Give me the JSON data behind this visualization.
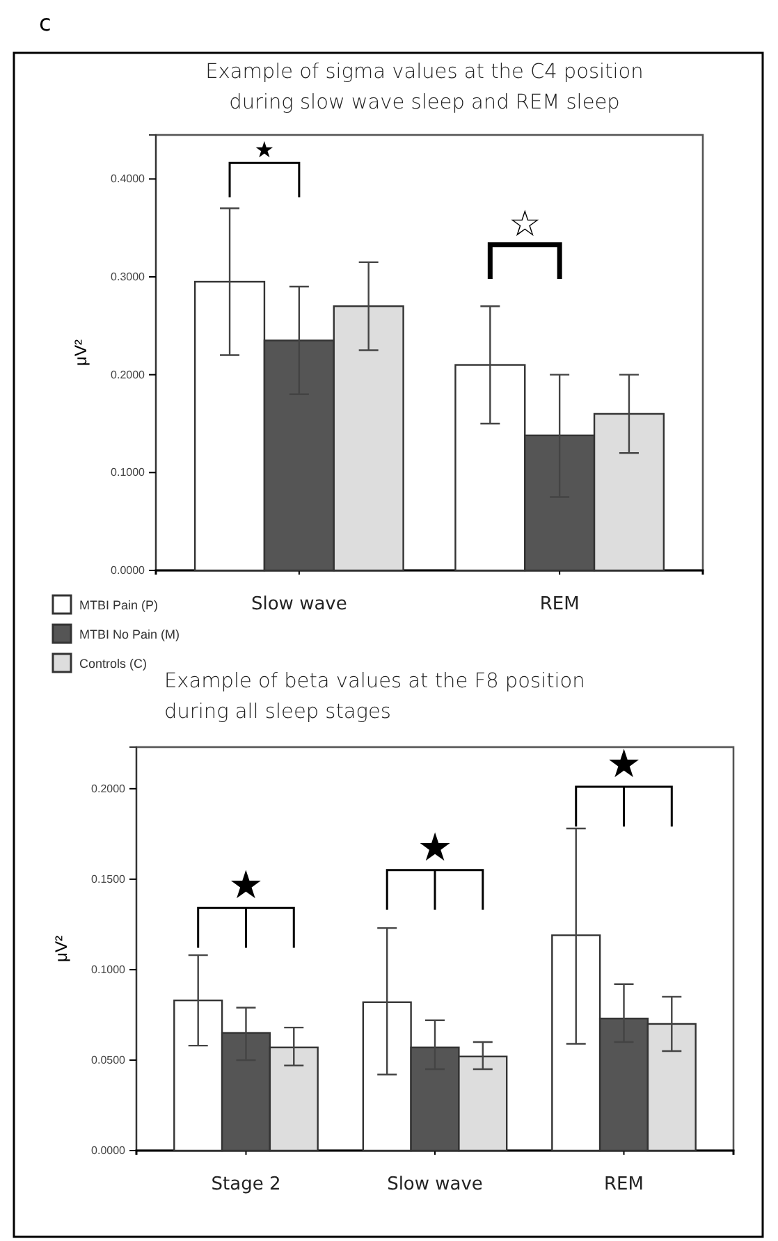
{
  "chart_data": [
    {
      "type": "bar",
      "title": "Example of sigma values at the C4 position during slow wave sleep and REM sleep",
      "ylabel": "μV²",
      "categories": [
        "Slow wave",
        "REM"
      ],
      "series": [
        {
          "name": "MTBI Pain (P)",
          "color": "#ffffff",
          "values": [
            0.295,
            0.21
          ],
          "errors": [
            [
              0.22,
              0.37
            ],
            [
              0.15,
              0.27
            ]
          ]
        },
        {
          "name": "MTBI No Pain (M)",
          "color": "#555555",
          "values": [
            0.235,
            0.138
          ],
          "errors": [
            [
              0.18,
              0.29
            ],
            [
              0.075,
              0.2
            ]
          ]
        },
        {
          "name": "Controls (C)",
          "color": "#dddddd",
          "values": [
            0.27,
            0.16
          ],
          "errors": [
            [
              0.225,
              0.315
            ],
            [
              0.12,
              0.2
            ]
          ]
        }
      ],
      "ylim": [
        0,
        0.445
      ],
      "yticks": [
        {
          "value": 0,
          "label": "0.0000"
        },
        {
          "value": 0.1,
          "label": "0.1000"
        },
        {
          "value": 0.2,
          "label": "0.2000"
        },
        {
          "value": 0.3,
          "label": "0.3000"
        },
        {
          "value": 0.4,
          "label": "0.4000"
        }
      ],
      "grid": false,
      "legend": "bottom left",
      "annotations": [
        "c",
        "★",
        "☆"
      ]
    },
    {
      "type": "bar",
      "title": "Example of beta values at the F8 position during all sleep stages",
      "ylabel": "μV²",
      "categories": [
        "Stage 2",
        "Slow wave",
        "REM"
      ],
      "series": [
        {
          "color": "#ffffff",
          "values": [
            0.083,
            0.082,
            0.119
          ],
          "errors": [
            [
              0.058,
              0.108
            ],
            [
              0.042,
              0.123
            ],
            [
              0.059,
              0.178
            ]
          ]
        },
        {
          "color": "#555555",
          "values": [
            0.065,
            0.057,
            0.073
          ],
          "errors": [
            [
              0.05,
              0.079
            ],
            [
              0.045,
              0.072
            ],
            [
              0.06,
              0.092
            ]
          ]
        },
        {
          "color": "#dddddd",
          "values": [
            0.057,
            0.052,
            0.07
          ],
          "errors": [
            [
              0.047,
              0.068
            ],
            [
              0.045,
              0.06
            ],
            [
              0.055,
              0.085
            ]
          ]
        }
      ],
      "ylim": [
        0,
        0.223
      ],
      "yticks": [
        {
          "value": 0,
          "label": "0.0000"
        },
        {
          "value": 0.05,
          "label": "0.0500"
        },
        {
          "value": 0.1,
          "label": "0.1000"
        },
        {
          "value": 0.15,
          "label": "0.1500"
        },
        {
          "value": 0.2,
          "label": "0.2000"
        }
      ],
      "grid": false,
      "legend": false,
      "annotations": [
        "★",
        "★",
        "★"
      ]
    }
  ]
}
